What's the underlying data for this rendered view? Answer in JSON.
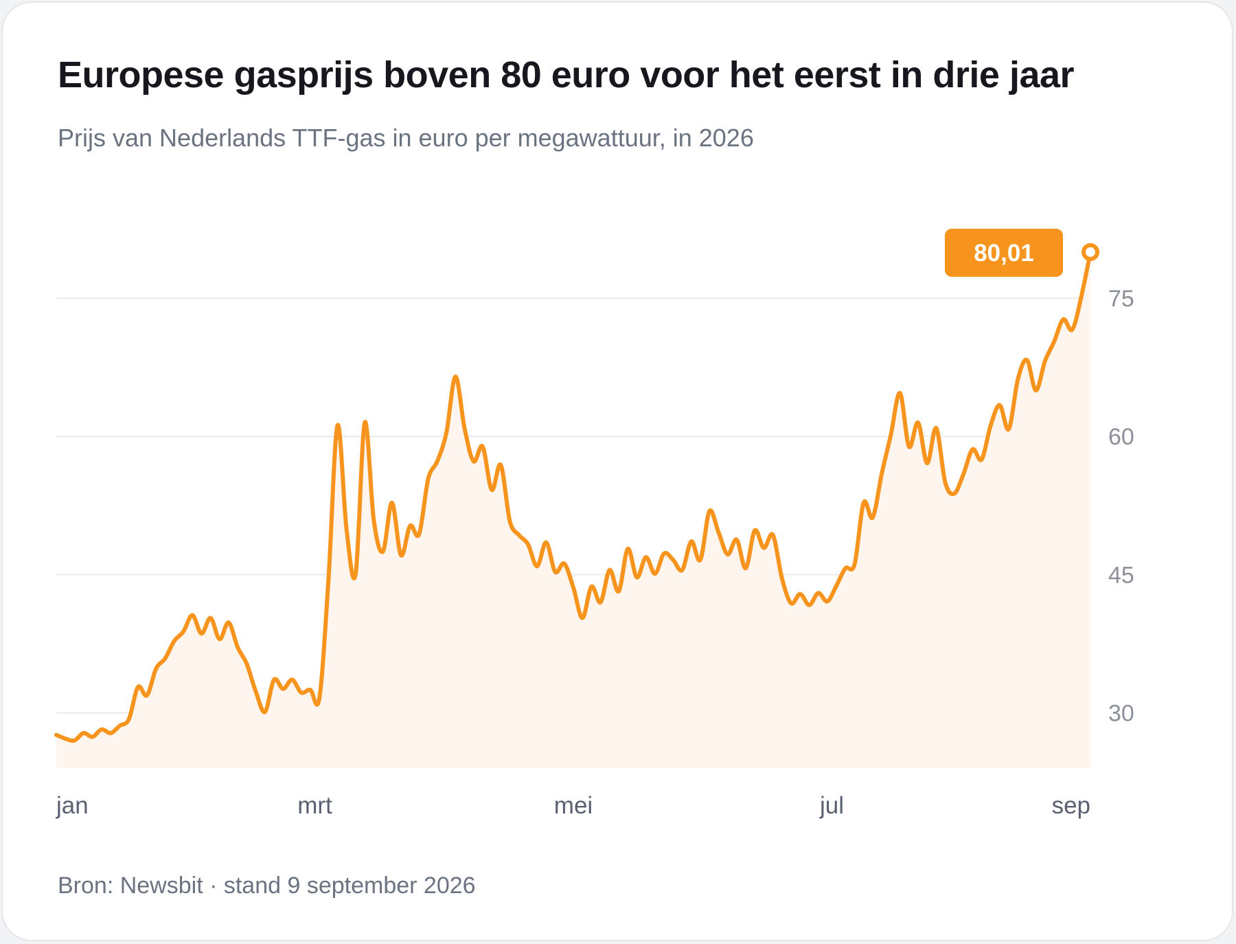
{
  "colors": {
    "accent": "#f7941d",
    "area": "#fdf5ee",
    "grid": "#e9eaed"
  },
  "header": {
    "title": "Europese gasprijs boven 80 euro voor het eerst in drie jaar",
    "subtitle": "Prijs van Nederlands TTF-gas in euro per megawattuur, in 2026"
  },
  "footer": {
    "source": "Bron: Newsbit · stand 9 september 2026"
  },
  "chart_data": {
    "type": "area",
    "title": "Europese gasprijs boven 80 euro voor het eerst in drie jaar",
    "subtitle": "Prijs van Nederlands TTF-gas in euro per megawattuur, in 2026",
    "xlabel": "",
    "ylabel": "",
    "x_ticks": [
      "jan",
      "mrt",
      "mei",
      "jul",
      "sep"
    ],
    "y_ticks": [
      30,
      45,
      60,
      75
    ],
    "ylim": [
      24,
      85
    ],
    "grid": true,
    "last_value_label": "80,01",
    "series": [
      {
        "values": [
          27.6,
          27.2,
          27.0,
          27.8,
          27.4,
          28.2,
          27.8,
          28.6,
          29.3,
          32.8,
          31.9,
          34.8,
          35.9,
          37.8,
          38.8,
          40.6,
          38.6,
          40.3,
          38.0,
          39.8,
          37.1,
          35.3,
          32.3,
          30.1,
          33.6,
          32.6,
          33.6,
          32.2,
          32.5,
          31.6,
          44.4,
          61.2,
          49.9,
          45.1,
          61.5,
          50.9,
          47.5,
          52.8,
          47.1,
          50.3,
          49.4,
          55.4,
          57.3,
          60.4,
          66.5,
          60.9,
          57.3,
          58.9,
          54.2,
          56.9,
          50.8,
          49.3,
          48.3,
          45.9,
          48.5,
          45.3,
          46.2,
          43.6,
          40.3,
          43.7,
          42.0,
          45.5,
          43.2,
          47.8,
          44.7,
          46.9,
          45.1,
          47.3,
          46.6,
          45.5,
          48.6,
          46.6,
          51.9,
          49.6,
          47.2,
          48.8,
          45.7,
          49.8,
          47.9,
          49.3,
          44.6,
          41.9,
          42.9,
          41.7,
          43.0,
          42.1,
          43.8,
          45.7,
          46.1,
          52.8,
          51.2,
          56.0,
          60.2,
          64.7,
          58.9,
          61.5,
          57.1,
          60.9,
          55.0,
          53.8,
          55.9,
          58.6,
          57.5,
          61.2,
          63.4,
          60.8,
          66.2,
          68.3,
          65.0,
          68.2,
          70.3,
          72.7,
          71.6,
          75.2,
          80.01
        ]
      }
    ]
  }
}
